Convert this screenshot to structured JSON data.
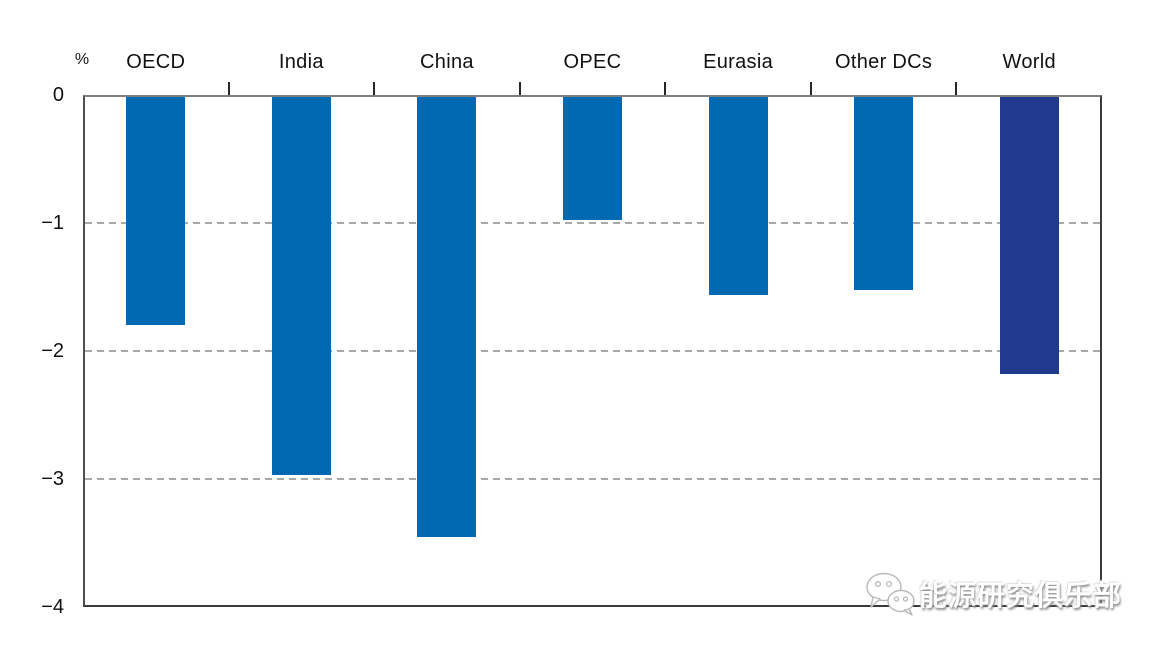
{
  "chart_data": {
    "type": "bar",
    "title": "",
    "unit_label": "%",
    "categories": [
      "OECD",
      "India",
      "China",
      "OPEC",
      "Eurasia",
      "Other DCs",
      "World"
    ],
    "values": [
      -1.8,
      -2.97,
      -3.45,
      -0.98,
      -1.56,
      -1.52,
      -2.18
    ],
    "bar_colors": [
      "#0069b1",
      "#0069b1",
      "#0069b1",
      "#0069b1",
      "#0069b1",
      "#0069b1",
      "#21398e"
    ],
    "highlighted_category": "World",
    "ylim": [
      -4,
      0
    ],
    "ytick_labels": [
      "0",
      "−1",
      "−2",
      "−3",
      "−4"
    ],
    "gridline_values": [
      -1,
      -2,
      -3
    ],
    "grid_style": "dashed horizontal at -1, -2, -3",
    "legend": "none",
    "colors": {
      "bar_blue": "#0069b1",
      "bar_navy": "#21398e",
      "axis_gray": "#7f7f7f",
      "grid_gray": "#a8a8a8",
      "text_dark": "#111111"
    }
  },
  "watermark": {
    "text": "能源研究俱乐部",
    "icon": "wechat-icon"
  }
}
